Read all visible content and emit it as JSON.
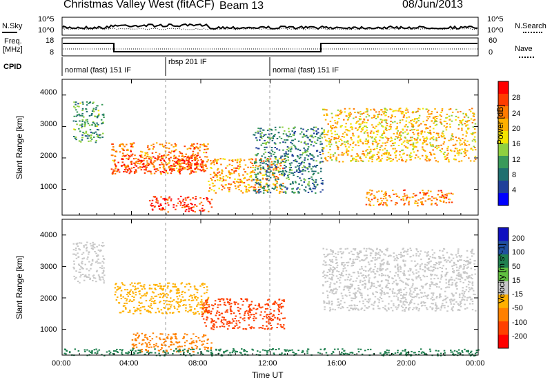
{
  "header": {
    "station": "Christmas Valley West (fitACF)",
    "beam": "Beam 13",
    "date": "08/Jun/2013"
  },
  "panels": {
    "nsky_label": "N.Sky",
    "nsearch_label": "N.Search",
    "noise_ticks_left": [
      "10^5",
      "10^0"
    ],
    "noise_ticks_right": [
      "10^5",
      "10^0"
    ],
    "freq_label_top": "Freq.",
    "freq_label_units": "[MHz]",
    "freq_ticks_left": [
      "18",
      "8"
    ],
    "nave_label": "Nave",
    "nave_ticks_right": [
      "60",
      "0"
    ],
    "cpid_label": "CPID",
    "cpid_segments": [
      "normal (fast) 151 IF",
      "rbsp 201 IF",
      "normal (fast) 151 IF"
    ]
  },
  "axes": {
    "ylabel": "Slant Range [km]",
    "xlabel": "Time UT",
    "yticks": [
      "4000",
      "3000",
      "2000",
      "1000"
    ],
    "xticks": [
      "00:00",
      "04:00",
      "08:00",
      "12:00",
      "16:00",
      "20:00",
      "00:00"
    ]
  },
  "chart_data": [
    {
      "type": "heatmap",
      "title": "",
      "xlabel": "Time UT",
      "ylabel": "Slant Range [km]",
      "xlim": [
        "00:00",
        "24:00"
      ],
      "ylim": [
        180,
        4500
      ],
      "colorbar": {
        "label": "Power [dB]",
        "ticks": [
          "28",
          "24",
          "20",
          "16",
          "12",
          "8",
          "4"
        ],
        "colors": [
          "#ff0000",
          "#ff3c00",
          "#ff7a00",
          "#ffb000",
          "#f4e400",
          "#8fd040",
          "#3a9a5a",
          "#1f6f6f",
          "#20409a",
          "#0000ff"
        ]
      },
      "regions": [
        {
          "t": [
            2.8,
            8.4
          ],
          "r": [
            1500,
            2500
          ],
          "value": 24
        },
        {
          "t": [
            3.0,
            8.2
          ],
          "r": [
            1550,
            2100
          ],
          "value": 28
        },
        {
          "t": [
            5.0,
            8.6
          ],
          "r": [
            300,
            800
          ],
          "value": 28
        },
        {
          "t": [
            8.4,
            12.8
          ],
          "r": [
            900,
            2000
          ],
          "value": 22
        },
        {
          "t": [
            15.0,
            23.8
          ],
          "r": [
            1900,
            3600
          ],
          "value": 20
        },
        {
          "t": [
            0.6,
            2.4
          ],
          "r": [
            2500,
            3800
          ],
          "value": 12
        },
        {
          "t": [
            11.0,
            15.0
          ],
          "r": [
            900,
            3000
          ],
          "value": 10
        },
        {
          "t": [
            17.5,
            22.5
          ],
          "r": [
            500,
            1000
          ],
          "value": 24
        }
      ]
    },
    {
      "type": "heatmap",
      "title": "",
      "xlabel": "Time UT",
      "ylabel": "Slant Range [km]",
      "xlim": [
        "00:00",
        "24:00"
      ],
      "ylim": [
        180,
        4500
      ],
      "colorbar": {
        "label": "Velocity [m s^-1]",
        "ticks": [
          "200",
          "100",
          "50",
          "15",
          "-15",
          "-50",
          "-100",
          "-200"
        ],
        "colors": [
          "#1010c0",
          "#2050a0",
          "#208050",
          "#60c040",
          "#c8c8c8",
          "#ffb000",
          "#ff8000",
          "#ff4000",
          "#ff0000"
        ]
      },
      "regions": [
        {
          "t": [
            3.0,
            8.4
          ],
          "r": [
            1500,
            2500
          ],
          "value": -20
        },
        {
          "t": [
            8.0,
            12.8
          ],
          "r": [
            1000,
            2000
          ],
          "value": -150
        },
        {
          "t": [
            4.0,
            8.6
          ],
          "r": [
            300,
            900
          ],
          "value": -60
        },
        {
          "t": [
            15.0,
            23.8
          ],
          "r": [
            1600,
            3600
          ],
          "value": 0
        },
        {
          "t": [
            0.6,
            2.4
          ],
          "r": [
            2500,
            3800
          ],
          "value": 0
        },
        {
          "t": [
            0.0,
            24.0
          ],
          "r": [
            180,
            400
          ],
          "value": 60
        }
      ]
    }
  ]
}
